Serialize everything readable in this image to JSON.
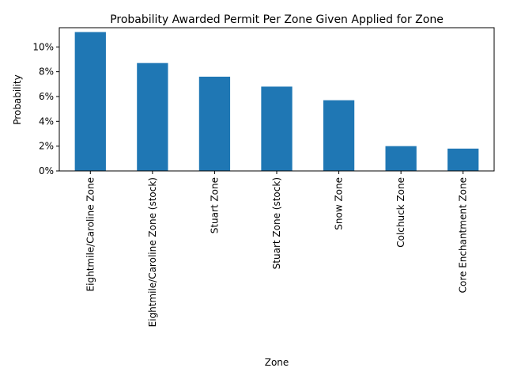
{
  "chart_data": {
    "type": "bar",
    "title": "Probability Awarded Permit Per Zone Given Applied for Zone",
    "xlabel": "Zone",
    "ylabel": "Probability",
    "categories": [
      "Eightmile/Caroline Zone",
      "Eightmile/Caroline Zone (stock)",
      "Stuart  Zone",
      "Stuart Zone (stock)",
      "Snow Zone",
      "Colchuck Zone",
      "Core Enchantment Zone"
    ],
    "values": [
      0.112,
      0.087,
      0.076,
      0.068,
      0.057,
      0.02,
      0.018
    ],
    "ylim": [
      0,
      0.1155
    ],
    "yticks": [
      0,
      0.02,
      0.04,
      0.06,
      0.08,
      0.1
    ],
    "ytick_labels": [
      "0%",
      "2%",
      "4%",
      "6%",
      "8%",
      "10%"
    ],
    "grid": false,
    "legend": "none",
    "bar_color": "#1f77b4"
  }
}
